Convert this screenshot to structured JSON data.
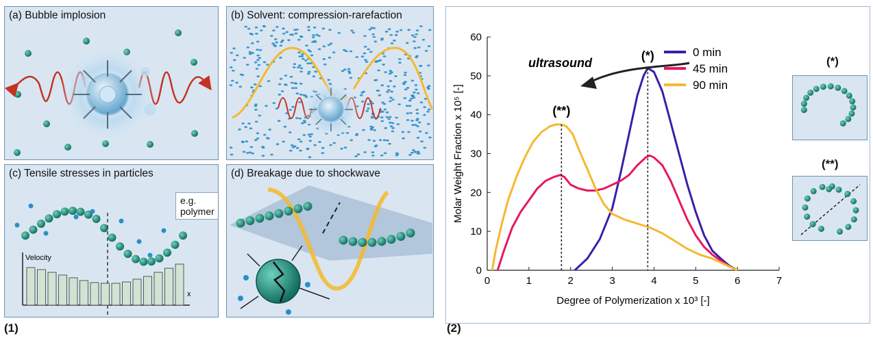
{
  "panels": {
    "a": {
      "title": "(a) Bubble implosion"
    },
    "b": {
      "title": "(b) Solvent: compression-rarefaction"
    },
    "c": {
      "title": "(c) Tensile stresses in particles",
      "example": "e.g. polymer",
      "velocity_label": "Velocity",
      "x_label": "x"
    },
    "d": {
      "title": "(d) Breakage due to shockwave"
    }
  },
  "figure_labels": {
    "left": "(1)",
    "right": "(2)"
  },
  "annotations": {
    "ultrasound": "ultrasound",
    "star": "(*)",
    "dstar": "(**)"
  },
  "side": {
    "star": "(*)",
    "dstar": "(**)"
  },
  "chart_data": {
    "type": "line",
    "xlabel": "Degree of Polymerization x 10³ [-]",
    "ylabel": "Molar Weight Fraction x 10⁵ [-]",
    "xlim": [
      0,
      7
    ],
    "ylim": [
      0,
      60
    ],
    "xticks": [
      "0",
      "1",
      "2",
      "3",
      "4",
      "5",
      "6",
      "7"
    ],
    "yticks": [
      "0",
      "10",
      "20",
      "30",
      "40",
      "50",
      "60"
    ],
    "legend_position": "top-right",
    "series": [
      {
        "name": "0 min",
        "color": "#3b1ea8",
        "x": [
          2.1,
          2.4,
          2.7,
          3.0,
          3.2,
          3.4,
          3.6,
          3.75,
          3.85,
          4.0,
          4.2,
          4.4,
          4.6,
          4.8,
          5.0,
          5.2,
          5.4,
          5.6,
          5.8,
          5.95,
          6.0
        ],
        "y": [
          0,
          3,
          8,
          16,
          25,
          35,
          45,
          50,
          52,
          51,
          46,
          38,
          30,
          22,
          15,
          9,
          5,
          3,
          1.2,
          0.3,
          0
        ]
      },
      {
        "name": "45 min",
        "color": "#e8175d",
        "x": [
          0.25,
          0.4,
          0.6,
          0.8,
          1.0,
          1.2,
          1.4,
          1.6,
          1.75,
          1.85,
          2.0,
          2.2,
          2.4,
          2.6,
          2.8,
          3.0,
          3.2,
          3.4,
          3.6,
          3.8,
          3.9,
          4.0,
          4.2,
          4.4,
          4.6,
          4.8,
          5.0,
          5.2,
          5.4,
          5.6,
          5.8,
          6.0
        ],
        "y": [
          0,
          5,
          11,
          15,
          18,
          21,
          23,
          24,
          24.5,
          24,
          22,
          21,
          20.5,
          20.5,
          21,
          22,
          23,
          24.5,
          27,
          29,
          29.5,
          29,
          27,
          23,
          18,
          13,
          9,
          6,
          4,
          2.5,
          1,
          0
        ]
      },
      {
        "name": "90 min",
        "color": "#f5b82e",
        "x": [
          0.12,
          0.2,
          0.35,
          0.5,
          0.7,
          0.9,
          1.1,
          1.3,
          1.5,
          1.65,
          1.78,
          1.9,
          2.05,
          2.2,
          2.4,
          2.6,
          2.8,
          3.0,
          3.3,
          3.6,
          3.9,
          4.2,
          4.5,
          4.8,
          5.1,
          5.4,
          5.7,
          6.0
        ],
        "y": [
          0,
          5,
          12,
          18,
          24,
          29,
          33,
          35.5,
          37,
          37.5,
          37.5,
          37,
          35,
          31,
          26,
          21,
          17,
          14.5,
          13,
          12,
          11,
          9.5,
          7.5,
          5.5,
          4,
          3,
          1.5,
          0
        ]
      }
    ]
  }
}
